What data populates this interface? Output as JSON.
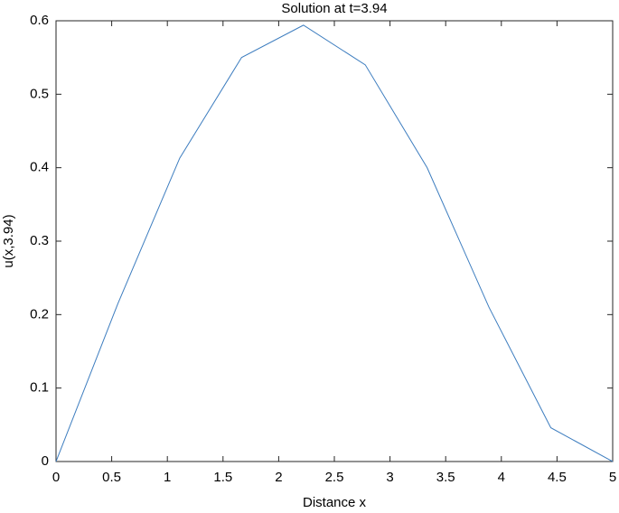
{
  "chart_data": {
    "type": "line",
    "title": "Solution at t=3.94",
    "x_label": "Distance x",
    "y_label": "u(x,3.94)",
    "x": [
      0,
      0.5556,
      1.1111,
      1.6667,
      2.2222,
      2.7778,
      3.3333,
      3.8889,
      4.4444,
      5
    ],
    "series": [
      {
        "name": "u",
        "color": "#3d7dbf",
        "values": [
          0,
          0.215,
          0.413,
          0.55,
          0.594,
          0.54,
          0.4,
          0.21,
          0.046,
          0
        ]
      }
    ],
    "xlim": [
      0,
      5
    ],
    "ylim": [
      0,
      0.6
    ],
    "xticks": [
      0,
      0.5,
      1,
      1.5,
      2,
      2.5,
      3,
      3.5,
      4,
      4.5,
      5
    ],
    "yticks": [
      0,
      0.1,
      0.2,
      0.3,
      0.4,
      0.5,
      0.6
    ],
    "grid": false
  }
}
